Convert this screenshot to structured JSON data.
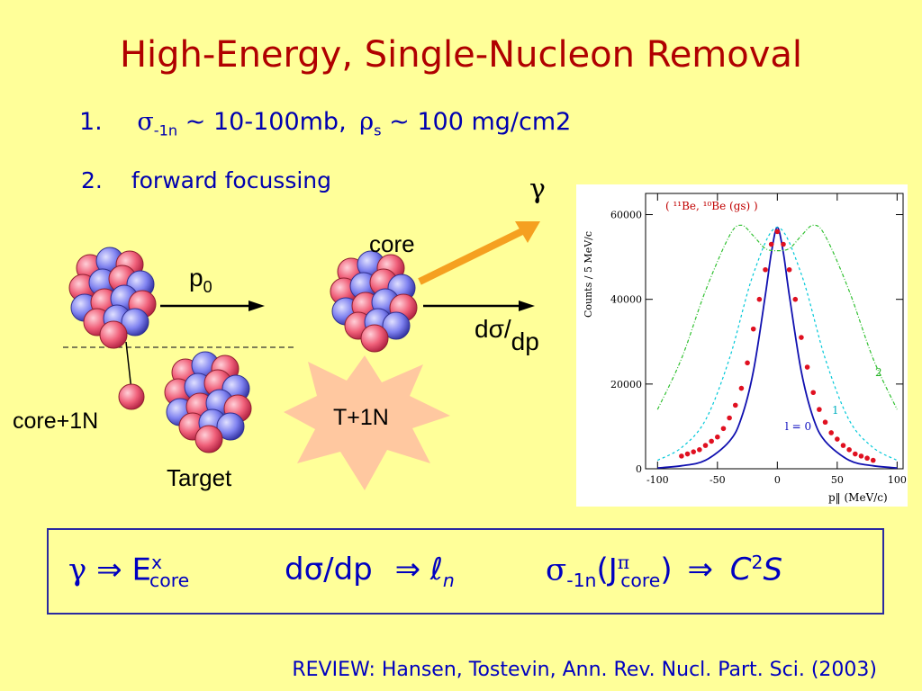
{
  "title": "High-Energy, Single-Nucleon Removal",
  "points": {
    "p1_number": "1.",
    "p1_sigma": "σ",
    "p1_sigma_sub": "-1n",
    "p1_text1": " ~ 10-100mb,",
    "p1_rho": "ρ",
    "p1_rho_sub": "s",
    "p1_text2": " ~ 100 mg/cm2",
    "p2_number": "2.",
    "p2_text": "forward focussing"
  },
  "diagram": {
    "gamma": "γ",
    "core": "core",
    "p0_p": "p",
    "p0_sub": "0",
    "dsdp_d": "dσ/",
    "dsdp_dp": "dp",
    "core_1n": "core+1N",
    "target": "Target",
    "t_1n": "T+1N",
    "colors": {
      "proton": "#F0607A",
      "neutron": "#7F82F0",
      "arrow_gamma": "#F5A020",
      "star": "#FFC8A0"
    }
  },
  "plot": {
    "legend": "( ¹¹Be, ¹⁰Be (gs) )",
    "ylabel": "Counts / 5 MeV/c",
    "xlabel": "p‖ (MeV/c)",
    "xticks": [
      "-100",
      "-50",
      "0",
      "50",
      "100"
    ],
    "yticks": [
      "0",
      "20000",
      "40000",
      "60000"
    ],
    "curve_label_l0": "l = 0",
    "curve_label_l1": "1",
    "curve_label_l2": "2"
  },
  "chart_data": {
    "type": "scatter",
    "legend": "( ¹¹Be, ¹⁰Be (gs) )",
    "xlabel": "p‖ (MeV/c)",
    "ylabel": "Counts / 5 MeV/c",
    "xlim": [
      -110,
      105
    ],
    "ylim": [
      0,
      65000
    ],
    "series": [
      {
        "name": "( ¹¹Be, ¹⁰Be (gs) )",
        "x": [
          -80,
          -75,
          -70,
          -65,
          -60,
          -55,
          -50,
          -45,
          -40,
          -35,
          -30,
          -25,
          -20,
          -15,
          -10,
          -5,
          0,
          5,
          10,
          15,
          20,
          25,
          30,
          35,
          40,
          45,
          50,
          55,
          60,
          65,
          70,
          75,
          80
        ],
        "y": [
          3000,
          3500,
          4000,
          4500,
          5500,
          6500,
          7500,
          9500,
          12000,
          15000,
          19000,
          25000,
          33000,
          40000,
          47000,
          53000,
          56000,
          53000,
          47000,
          40000,
          31000,
          24000,
          18000,
          14000,
          11000,
          8500,
          7000,
          5500,
          4500,
          3500,
          3000,
          2500,
          2000
        ]
      },
      {
        "name": "l = 0",
        "x": [
          -100,
          -80,
          -60,
          -40,
          -30,
          -20,
          -10,
          -5,
          0,
          5,
          10,
          20,
          30,
          40,
          60,
          80,
          100
        ],
        "y": [
          200,
          700,
          2000,
          6500,
          12000,
          23000,
          41000,
          51000,
          57000,
          51000,
          41000,
          23000,
          12000,
          6500,
          2000,
          700,
          200
        ]
      },
      {
        "name": "1",
        "x": [
          -100,
          -80,
          -60,
          -40,
          -20,
          0,
          20,
          40,
          60,
          80,
          100
        ],
        "y": [
          2000,
          5000,
          11500,
          26000,
          46000,
          57000,
          46000,
          26000,
          11500,
          5000,
          2000
        ]
      },
      {
        "name": "2",
        "x": [
          -100,
          -80,
          -60,
          -40,
          -30,
          -20,
          -10,
          0,
          10,
          20,
          30,
          40,
          60,
          80,
          100
        ],
        "y": [
          14000,
          26000,
          42000,
          55000,
          57500,
          55000,
          52000,
          51500,
          52000,
          55000,
          57500,
          55000,
          42000,
          26000,
          14000
        ]
      }
    ]
  },
  "formula": {
    "gamma": "γ",
    "arrow": "⇒",
    "E": "E",
    "E_sup": "x",
    "E_sub": "core",
    "dsdp": "dσ/dp",
    "ell": "ℓ",
    "ell_sub": "n",
    "sigma": "σ",
    "sigma_sub": "-1n",
    "J_open": "(J",
    "J_sup": "π",
    "J_sub": "core",
    "J_close": ")",
    "C": "C",
    "C_sup": "2",
    "S": "S"
  },
  "review": "REVIEW: Hansen, Tostevin, Ann. Rev. Nucl. Part. Sci. (2003)"
}
